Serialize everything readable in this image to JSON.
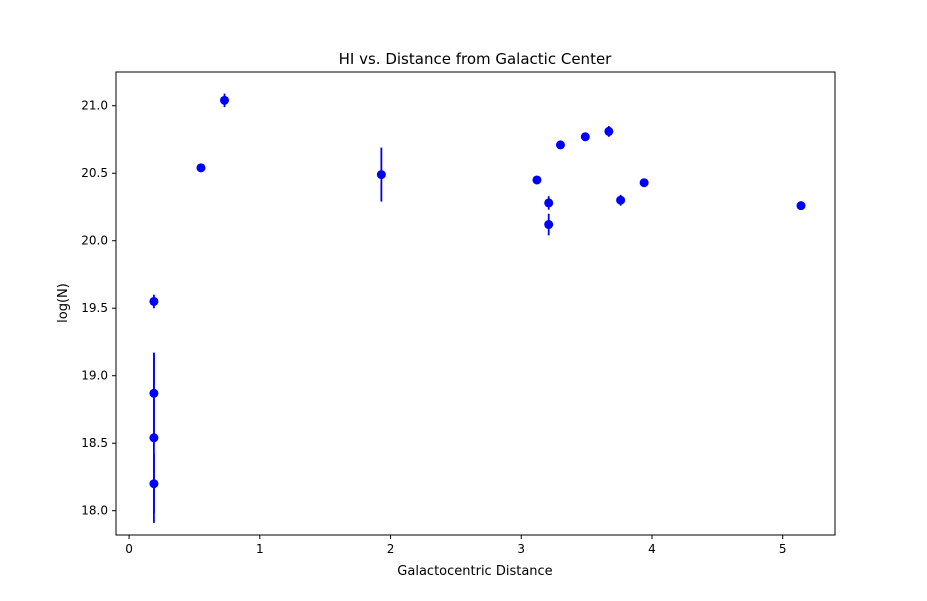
{
  "chart_data": {
    "type": "scatter",
    "title": "HI vs. Distance from Galactic Center",
    "xlabel": "Galactocentric Distance",
    "ylabel": "log(N)",
    "xlim": [
      -0.1,
      5.4
    ],
    "ylim": [
      17.82,
      21.25
    ],
    "xticks": [
      0,
      1,
      2,
      3,
      4,
      5
    ],
    "xtick_labels": [
      "0",
      "1",
      "2",
      "3",
      "4",
      "5"
    ],
    "yticks": [
      18.0,
      18.5,
      19.0,
      19.5,
      20.0,
      20.5,
      21.0
    ],
    "ytick_labels": [
      "18.0",
      "18.5",
      "19.0",
      "19.5",
      "20.0",
      "20.5",
      "21.0"
    ],
    "grid": false,
    "marker_color": "#0000ff",
    "points": [
      {
        "x": 0.19,
        "y": 19.55,
        "err": 0.05
      },
      {
        "x": 0.19,
        "y": 18.87,
        "err": 0.3
      },
      {
        "x": 0.19,
        "y": 18.54,
        "err": 0.63
      },
      {
        "x": 0.19,
        "y": 18.2,
        "err": 0.22
      },
      {
        "x": 0.55,
        "y": 20.54,
        "err": 0.03
      },
      {
        "x": 0.73,
        "y": 21.04,
        "err": 0.05
      },
      {
        "x": 1.93,
        "y": 20.49,
        "err": 0.2
      },
      {
        "x": 3.12,
        "y": 20.45,
        "err": 0.03
      },
      {
        "x": 3.21,
        "y": 20.28,
        "err": 0.05
      },
      {
        "x": 3.21,
        "y": 20.12,
        "err": 0.08
      },
      {
        "x": 3.3,
        "y": 20.71,
        "err": 0.02
      },
      {
        "x": 3.49,
        "y": 20.77,
        "err": 0.02
      },
      {
        "x": 3.67,
        "y": 20.81,
        "err": 0.04
      },
      {
        "x": 3.76,
        "y": 20.3,
        "err": 0.04
      },
      {
        "x": 3.94,
        "y": 20.43,
        "err": 0.02
      },
      {
        "x": 5.14,
        "y": 20.26,
        "err": 0.02
      }
    ]
  }
}
